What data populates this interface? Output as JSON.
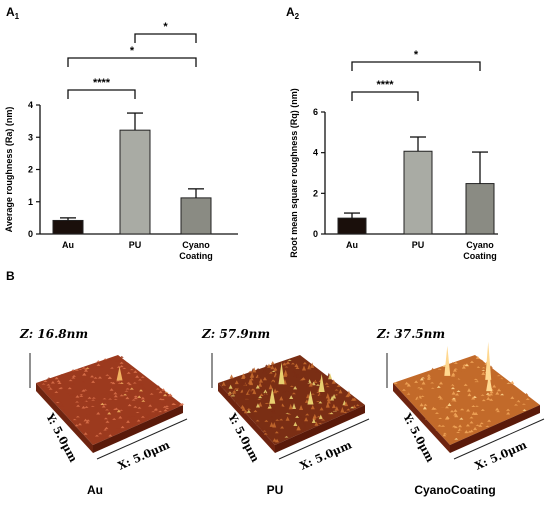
{
  "labels": {
    "a1": "A",
    "a1_sub": "1",
    "a2": "A",
    "a2_sub": "2",
    "b": "B"
  },
  "chart_data": [
    {
      "type": "bar",
      "panel": "A1",
      "title": "",
      "xlabel": "",
      "ylabel": "Average roughness (Ra) (nm)",
      "ylim": [
        0,
        4
      ],
      "yticks": [
        "0",
        "1",
        "2",
        "3",
        "4"
      ],
      "categories": [
        "Au",
        "PU",
        "Cyano Coating"
      ],
      "values": [
        0.42,
        3.22,
        1.12
      ],
      "errors": [
        0.08,
        0.53,
        0.28
      ],
      "colors": [
        "#1a0f0b",
        "#a9aba4",
        "#8a8b83"
      ],
      "significance": [
        {
          "from": 0,
          "to": 1,
          "label": "****"
        },
        {
          "from": 0,
          "to": 2,
          "label": "*"
        },
        {
          "from": 1,
          "to": 2,
          "label": "*"
        }
      ],
      "grid": false
    },
    {
      "type": "bar",
      "panel": "A2",
      "title": "",
      "xlabel": "",
      "ylabel": "Root mean square roughness (Rq) (nm)",
      "ylim": [
        0,
        6
      ],
      "yticks": [
        "0",
        "2",
        "4",
        "6"
      ],
      "categories": [
        "Au",
        "PU",
        "Cyano Coating"
      ],
      "values": [
        0.78,
        4.07,
        2.48
      ],
      "errors": [
        0.25,
        0.7,
        1.55
      ],
      "colors": [
        "#1a0f0b",
        "#a9aba4",
        "#8a8b83"
      ],
      "significance": [
        {
          "from": 0,
          "to": 1,
          "label": "****"
        },
        {
          "from": 0,
          "to": 2,
          "label": "*"
        }
      ],
      "grid": false
    }
  ],
  "afm": [
    {
      "z": "Z: 16.8nm",
      "y": "Y: 5.0μm",
      "x": "X: 5.0μm",
      "caption": "Au",
      "color_dark": "#9c3a1e",
      "color_light": "#d8704a",
      "peak_color": "#f0b060"
    },
    {
      "z": "Z: 57.9nm",
      "y": "Y: 5.0μm",
      "x": "X: 5.0μm",
      "caption": "PU",
      "color_dark": "#7a2e14",
      "color_light": "#c46a2e",
      "peak_color": "#e8d070"
    },
    {
      "z": "Z: 37.5nm",
      "y": "Y: 5.0μm",
      "x": "X: 5.0μm",
      "caption": "CyanoCoating",
      "color_dark": "#c26a2a",
      "color_light": "#f0a458",
      "peak_color": "#ffd890"
    }
  ]
}
